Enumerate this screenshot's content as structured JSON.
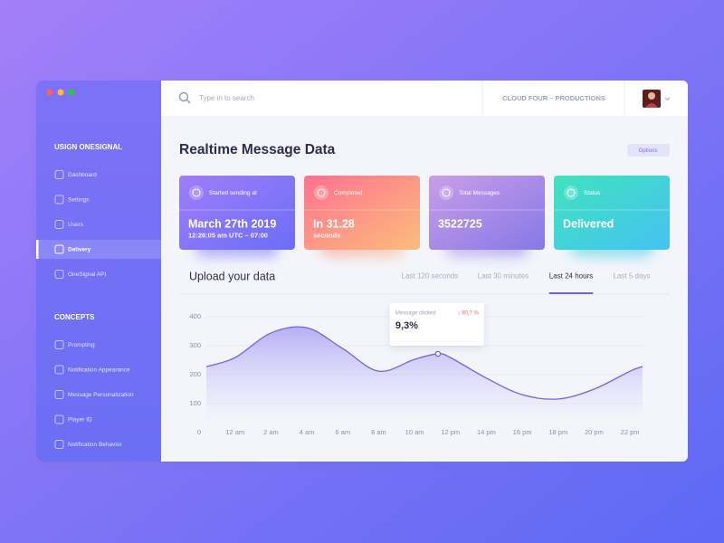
{
  "window": {
    "sidebar": {
      "sections": [
        {
          "title": "USIGN ONESIGNAL",
          "items": [
            "Dashboard",
            "Settings",
            "Users",
            "Delivery",
            "OneSignal API"
          ]
        },
        {
          "title": "CONCEPTS",
          "items": [
            "Prompting",
            "Notification Appearance",
            "Message Personalization",
            "Player ID",
            "Notification Behavior"
          ]
        }
      ]
    },
    "header": {
      "search_placeholder": "Type in to search",
      "organization": "CLOUD FOUR – PRODUCTIONS"
    },
    "page_title": "Realtime Message Data",
    "options_button": "Options",
    "cards": [
      {
        "label": "Started sending at",
        "value": "March 27th 2019",
        "sub": "12:26:05 am UTC – 07:00",
        "color": [
          "#a07dfb",
          "#6b6ef6"
        ]
      },
      {
        "label": "Completed",
        "value": "In 31.28",
        "sub": "seconds",
        "color": [
          "#ff7190",
          "#fbbd7c"
        ]
      },
      {
        "label": "Total Messages",
        "value": "3522725",
        "color": [
          "#c99de9",
          "#8679e6"
        ]
      },
      {
        "label": "Status",
        "value": "Delivered",
        "color": [
          "#3fe3bd",
          "#45c2f3"
        ]
      }
    ],
    "chart_panel": {
      "title": "Upload your data",
      "tabs": [
        "Last 120 seconds",
        "Last 30 minutes",
        "Last 24 hours",
        "Last 5 days"
      ],
      "active_tab": 2
    }
  },
  "chart_data": {
    "type": "area",
    "x": [
      -1.6,
      0,
      2,
      4,
      6,
      8,
      10,
      11.3,
      12,
      14,
      16,
      18,
      20,
      22,
      22.7
    ],
    "xlim": [
      -1.6,
      22.7
    ],
    "xticks": [
      {
        "value": 0,
        "label": "12 am"
      },
      {
        "value": 2,
        "label": "2 am"
      },
      {
        "value": 4,
        "label": "4 am"
      },
      {
        "value": 6,
        "label": "6 am"
      },
      {
        "value": 8,
        "label": "8 am"
      },
      {
        "value": 10,
        "label": "10 am"
      },
      {
        "value": 12,
        "label": "12 pm"
      },
      {
        "value": 14,
        "label": "14 pm"
      },
      {
        "value": 16,
        "label": "16 pm"
      },
      {
        "value": 18,
        "label": "18 pm"
      },
      {
        "value": 20,
        "label": "20 pm"
      },
      {
        "value": 22,
        "label": "22 pm"
      }
    ],
    "ylim": [
      0,
      400
    ],
    "yticks": [
      0,
      100,
      200,
      300,
      400
    ],
    "grid": true,
    "series": [
      {
        "color": "#6c63e8",
        "values": [
          228,
          259,
          344,
          362,
          290,
          212,
          253,
          272,
          259,
          188,
          131,
          116,
          150,
          212,
          228
        ]
      }
    ],
    "highlight_index": 7,
    "tooltip": {
      "title": "Message clicked",
      "change": "↓ 90,7 %",
      "value": "9,3%"
    }
  }
}
